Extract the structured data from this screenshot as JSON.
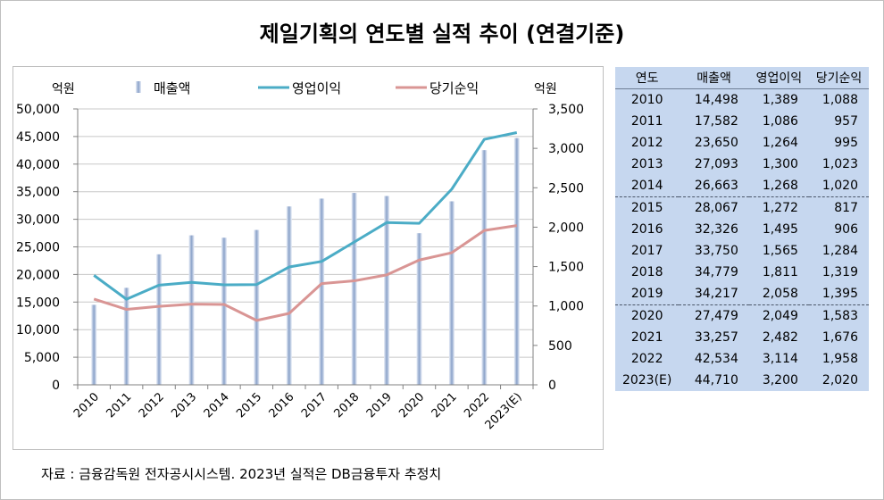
{
  "title": "제일기획의 연도별 실적 추이 (연결기준)",
  "source": "자료 : 금융감독원 전자공시시스템. 2023년 실적은 DB금융투자 추정치",
  "colors": {
    "bar_light": "#e9eef8",
    "bar_dark": "#8aa2c9",
    "operating": "#4bacc6",
    "net": "#d99594",
    "table_bg": "#c6d7ef"
  },
  "chart_data": {
    "type": "bar+line",
    "title": "제일기획의 연도별 실적 추이 (연결기준)",
    "categories": [
      "2010",
      "2011",
      "2012",
      "2013",
      "2014",
      "2015",
      "2016",
      "2017",
      "2018",
      "2019",
      "2020",
      "2021",
      "2022",
      "2023(E)"
    ],
    "left_axis": {
      "unit": "억원",
      "min": 0,
      "max": 50000,
      "ticks": [
        "0",
        "5,000",
        "10,000",
        "15,000",
        "20,000",
        "25,000",
        "30,000",
        "35,000",
        "40,000",
        "45,000",
        "50,000"
      ]
    },
    "right_axis": {
      "unit": "억원",
      "min": 0,
      "max": 3500,
      "ticks": [
        "0",
        "500",
        "1,000",
        "1,500",
        "2,000",
        "2,500",
        "3,000",
        "3,500"
      ]
    },
    "legend": {
      "sales": "매출액",
      "operating": "영업이익",
      "net": "당기순익",
      "position": "top"
    },
    "series": [
      {
        "name": "매출액",
        "type": "bar",
        "axis": "left",
        "values": [
          14498,
          17582,
          23650,
          27093,
          26663,
          28067,
          32326,
          33750,
          34779,
          34217,
          27479,
          33257,
          42534,
          44710
        ]
      },
      {
        "name": "영업이익",
        "type": "line",
        "axis": "right",
        "values": [
          1389,
          1086,
          1264,
          1300,
          1268,
          1272,
          1495,
          1565,
          1811,
          2058,
          2049,
          2482,
          3114,
          3200
        ]
      },
      {
        "name": "당기순익",
        "type": "line",
        "axis": "right",
        "values": [
          1088,
          957,
          995,
          1023,
          1020,
          817,
          906,
          1284,
          1319,
          1395,
          1583,
          1676,
          1958,
          2020
        ]
      }
    ]
  },
  "table": {
    "headers": [
      "연도",
      "매출액",
      "영업이익",
      "당기순익"
    ],
    "rows": [
      [
        "2010",
        "14,498",
        "1,389",
        "1,088"
      ],
      [
        "2011",
        "17,582",
        "1,086",
        "957"
      ],
      [
        "2012",
        "23,650",
        "1,264",
        "995"
      ],
      [
        "2013",
        "27,093",
        "1,300",
        "1,023"
      ],
      [
        "2014",
        "26,663",
        "1,268",
        "1,020"
      ],
      [
        "2015",
        "28,067",
        "1,272",
        "817"
      ],
      [
        "2016",
        "32,326",
        "1,495",
        "906"
      ],
      [
        "2017",
        "33,750",
        "1,565",
        "1,284"
      ],
      [
        "2018",
        "34,779",
        "1,811",
        "1,319"
      ],
      [
        "2019",
        "34,217",
        "2,058",
        "1,395"
      ],
      [
        "2020",
        "27,479",
        "2,049",
        "1,583"
      ],
      [
        "2021",
        "33,257",
        "2,482",
        "1,676"
      ],
      [
        "2022",
        "42,534",
        "3,114",
        "1,958"
      ],
      [
        "2023(E)",
        "44,710",
        "3,200",
        "2,020"
      ]
    ]
  }
}
